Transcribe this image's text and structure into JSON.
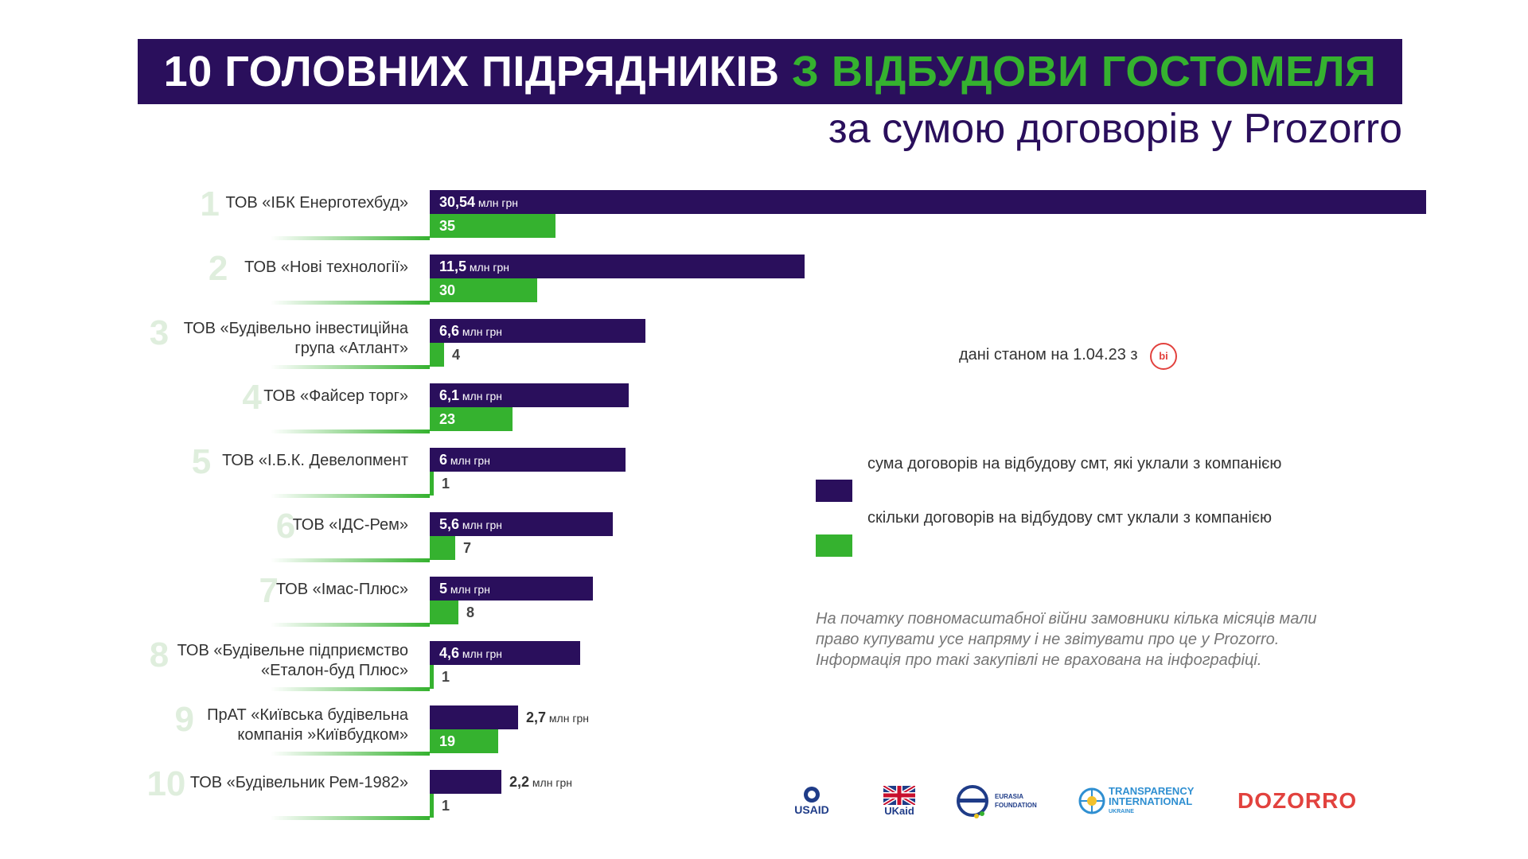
{
  "title": {
    "part1": "10 ГОЛОВНИХ ПІДРЯДНИКІВ",
    "part2": "З ВІДБУДОВИ ГОСТОМЕЛЯ",
    "subtitle": "за сумою договорів у Prozorro"
  },
  "colors": {
    "navy": "#2a0f5c",
    "green": "#35b22f",
    "rank": "#dfeedd",
    "accent_red": "#e2423e"
  },
  "chart_data": {
    "type": "bar",
    "orientation": "horizontal",
    "categories": [
      [
        "ТОВ «ІБК Енерготехбуд»"
      ],
      [
        "ТОВ «Нові технології»"
      ],
      [
        "ТОВ «Будівельно інвестиційна",
        "група «Атлант»"
      ],
      [
        "ТОВ «Файсер торг»"
      ],
      [
        "ТОВ «І.Б.К. Девелопмент"
      ],
      [
        "ТОВ «ІДС-Рем»"
      ],
      [
        "ТОВ «Імас-Плюс»"
      ],
      [
        "ТОВ «Будівельне підприємство",
        "«Еталон-буд Плюс»"
      ],
      [
        "ПрАТ «Київська будівельна",
        "компанія »Київбудком»"
      ],
      [
        "ТОВ «Будівельник Рем-1982»"
      ]
    ],
    "ranks": [
      "1",
      "2",
      "3",
      "4",
      "5",
      "6",
      "7",
      "8",
      "9",
      "10"
    ],
    "series": [
      {
        "name": "сума договорів на відбудову смт, які уклали з компанією",
        "unit": "млн грн",
        "values": [
          30.54,
          11.5,
          6.6,
          6.1,
          6,
          5.6,
          5,
          4.6,
          2.7,
          2.2
        ],
        "labels": [
          "30,54",
          "11,5",
          "6,6",
          "6,1",
          "6",
          "5,6",
          "5",
          "4,6",
          "2,7",
          "2,2"
        ]
      },
      {
        "name": "скільки договорів на відбудову смт уклали з компанією",
        "values": [
          35,
          30,
          4,
          23,
          1,
          7,
          8,
          1,
          19,
          1
        ],
        "labels": [
          "35",
          "30",
          "4",
          "23",
          "1",
          "7",
          "8",
          "1",
          "19",
          "1"
        ]
      }
    ]
  },
  "sum_unit": "млн грн",
  "date_note": "дані станом на 1.04.23 з",
  "date_badge": "bi",
  "footnote": [
    "На початку повномасштабної війни замовники кілька місяців мали",
    "право купувати усе напряму і не звітувати про це у Prozorro.",
    "Інформація про такі закупівлі не врахована на інфографіці."
  ],
  "logos": {
    "usaid": "USAID",
    "ukaid": "UKaid",
    "eurasia_line1": "EURASIA",
    "eurasia_line2": "FOUNDATION",
    "ti_line1": "TRANSPARENCY",
    "ti_line2": "INTERNATIONAL",
    "ti_line3": "UKRAINE",
    "dozorro": "DOZORRO"
  }
}
